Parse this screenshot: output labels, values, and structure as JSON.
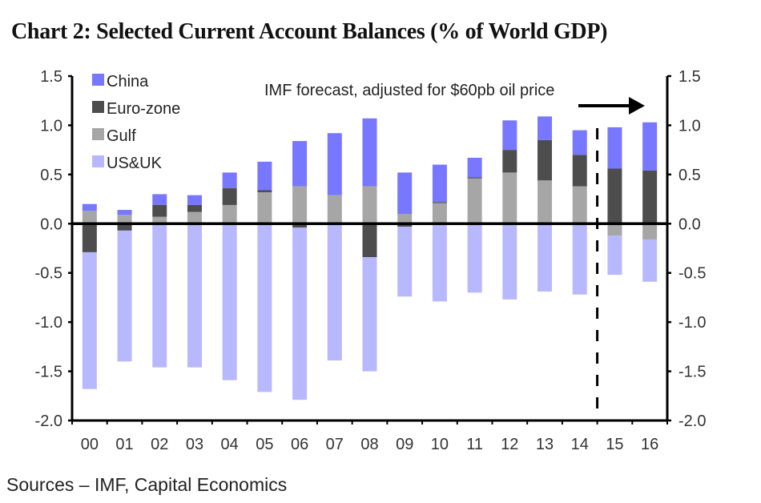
{
  "chart_data": {
    "type": "bar",
    "stacked": true,
    "title": "Chart 2: Selected Current Account Balances (% of World GDP)",
    "xlabel": "",
    "ylabel": "",
    "ylim": [
      -2.0,
      1.5
    ],
    "yticks": [
      "1.5",
      "1.0",
      "0.5",
      "0.0",
      "-0.5",
      "-1.0",
      "-1.5",
      "-2.0"
    ],
    "ytick_values": [
      1.5,
      1.0,
      0.5,
      0.0,
      -0.5,
      -1.0,
      -1.5,
      -2.0
    ],
    "secondary_y": true,
    "grid": false,
    "legend_position": "top-left",
    "categories": [
      "00",
      "01",
      "02",
      "03",
      "04",
      "05",
      "06",
      "07",
      "08",
      "09",
      "10",
      "11",
      "12",
      "13",
      "14",
      "15",
      "16"
    ],
    "series": [
      {
        "name": "Gulf",
        "color": "#a6a6a6",
        "values": [
          0.13,
          0.09,
          0.07,
          0.12,
          0.19,
          0.32,
          0.38,
          0.29,
          0.38,
          0.1,
          0.21,
          0.46,
          0.52,
          0.44,
          0.38,
          -0.12,
          -0.16
        ]
      },
      {
        "name": "Euro-zone",
        "color": "#4d4d4d",
        "values": [
          -0.29,
          -0.07,
          0.12,
          0.07,
          0.17,
          0.02,
          -0.04,
          0.0,
          -0.34,
          -0.03,
          0.01,
          0.01,
          0.23,
          0.41,
          0.32,
          0.56,
          0.54
        ]
      },
      {
        "name": "China",
        "color": "#7777ff",
        "values": [
          0.07,
          0.05,
          0.11,
          0.1,
          0.16,
          0.29,
          0.46,
          0.63,
          0.69,
          0.42,
          0.38,
          0.2,
          0.3,
          0.24,
          0.25,
          0.42,
          0.49
        ]
      },
      {
        "name": "US&UK",
        "color": "#b8b8ff",
        "values": [
          -1.39,
          -1.33,
          -1.46,
          -1.46,
          -1.59,
          -1.71,
          -1.75,
          -1.39,
          -1.16,
          -0.71,
          -0.79,
          -0.7,
          -0.77,
          -0.69,
          -0.72,
          -0.4,
          -0.43
        ]
      }
    ],
    "legend": [
      {
        "name": "China",
        "color": "#7777ff"
      },
      {
        "name": "Euro-zone",
        "color": "#4d4d4d"
      },
      {
        "name": "Gulf",
        "color": "#a6a6a6"
      },
      {
        "name": "US&UK",
        "color": "#b8b8ff"
      }
    ],
    "annotations": [
      {
        "text": "IMF forecast, adjusted for $60pb oil price",
        "type": "label-with-arrow",
        "direction": "right"
      },
      {
        "type": "vertical-dashed-line",
        "between": [
          "14",
          "15"
        ]
      }
    ]
  },
  "source": "Sources – IMF, Capital Economics"
}
